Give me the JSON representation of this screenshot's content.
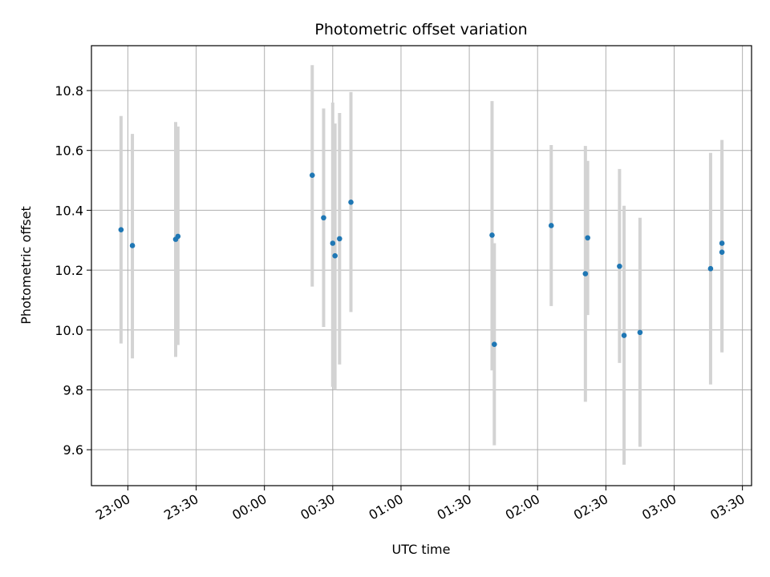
{
  "chart_data": {
    "type": "scatter",
    "title": "Photometric offset variation",
    "xlabel": "UTC time",
    "ylabel": "Photometric offset",
    "x_tick_values": [
      -60,
      -30,
      0,
      30,
      60,
      90,
      120,
      150,
      180,
      210
    ],
    "x_tick_labels": [
      "23:00",
      "23:30",
      "00:00",
      "00:30",
      "01:00",
      "01:30",
      "02:00",
      "02:30",
      "03:00",
      "03:30"
    ],
    "y_ticks": [
      9.6,
      9.8,
      10.0,
      10.2,
      10.4,
      10.6,
      10.8
    ],
    "y_tick_labels": [
      "9.6",
      "9.8",
      "10.0",
      "10.2",
      "10.4",
      "10.6",
      "10.8"
    ],
    "xlim": [
      -76,
      214
    ],
    "ylim": [
      9.48,
      10.95
    ],
    "grid": true,
    "point_color": "#1f77b4",
    "errorbar_color": "#d3d3d3",
    "series": [
      {
        "points": [
          {
            "x": "22:57",
            "y": 10.335,
            "yerr_low": 9.955,
            "yerr_high": 10.715
          },
          {
            "x": "23:02",
            "y": 10.282,
            "yerr_low": 9.905,
            "yerr_high": 10.655
          },
          {
            "x": "23:21",
            "y": 10.303,
            "yerr_low": 9.91,
            "yerr_high": 10.695
          },
          {
            "x": "23:22",
            "y": 10.313,
            "yerr_low": 9.95,
            "yerr_high": 10.68
          },
          {
            "x": "00:21",
            "y": 10.517,
            "yerr_low": 10.145,
            "yerr_high": 10.885
          },
          {
            "x": "00:26",
            "y": 10.375,
            "yerr_low": 10.01,
            "yerr_high": 10.74
          },
          {
            "x": "00:30",
            "y": 10.29,
            "yerr_low": 9.81,
            "yerr_high": 10.76
          },
          {
            "x": "00:31",
            "y": 10.248,
            "yerr_low": 9.8,
            "yerr_high": 10.69
          },
          {
            "x": "00:33",
            "y": 10.305,
            "yerr_low": 9.885,
            "yerr_high": 10.725
          },
          {
            "x": "00:38",
            "y": 10.427,
            "yerr_low": 10.06,
            "yerr_high": 10.795
          },
          {
            "x": "01:40",
            "y": 10.317,
            "yerr_low": 9.865,
            "yerr_high": 10.765
          },
          {
            "x": "01:41",
            "y": 9.952,
            "yerr_low": 9.615,
            "yerr_high": 10.29
          },
          {
            "x": "02:06",
            "y": 10.349,
            "yerr_low": 10.08,
            "yerr_high": 10.618
          },
          {
            "x": "02:21",
            "y": 10.188,
            "yerr_low": 9.76,
            "yerr_high": 10.615
          },
          {
            "x": "02:22",
            "y": 10.308,
            "yerr_low": 10.05,
            "yerr_high": 10.565
          },
          {
            "x": "02:36",
            "y": 10.213,
            "yerr_low": 9.89,
            "yerr_high": 10.538
          },
          {
            "x": "02:38",
            "y": 9.982,
            "yerr_low": 9.55,
            "yerr_high": 10.415
          },
          {
            "x": "02:45",
            "y": 9.992,
            "yerr_low": 9.61,
            "yerr_high": 10.375
          },
          {
            "x": "03:16",
            "y": 10.205,
            "yerr_low": 9.818,
            "yerr_high": 10.592
          },
          {
            "x": "03:21",
            "y": 10.29,
            "yerr_low": 9.93,
            "yerr_high": 10.635
          },
          {
            "x": "03:21",
            "y": 10.26,
            "yerr_low": 9.925,
            "yerr_high": 10.595
          }
        ]
      }
    ]
  }
}
